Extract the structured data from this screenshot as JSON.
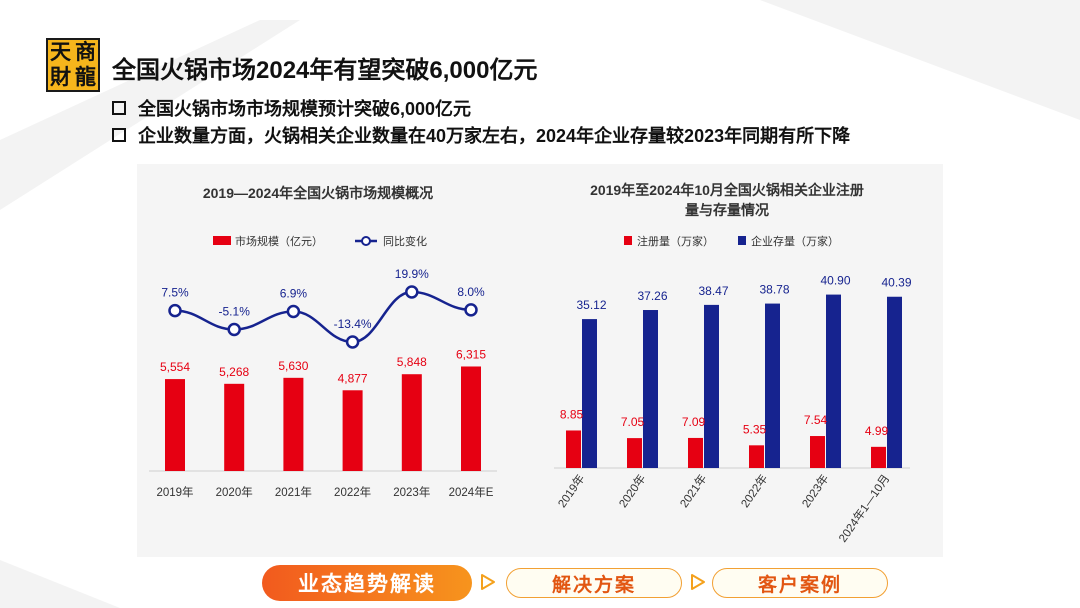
{
  "logo": {
    "chars": [
      "天",
      "商",
      "財",
      "龍"
    ]
  },
  "header": {
    "title": "全国火锅市场2024年有望突破6,000亿元"
  },
  "bullets": [
    "全国火锅市场市场规模预计突破6,000亿元",
    "企业数量方面，火锅相关企业数量在40万家左右，2024年企业存量较2023年同期有所下降"
  ],
  "colors": {
    "red": "#e60012",
    "navy": "#16238f",
    "orange": "#f47a20"
  },
  "chart_data": [
    {
      "type": "bar",
      "title": "2019—2024年全国火锅市场规模概况",
      "categories": [
        "2019年",
        "2020年",
        "2021年",
        "2022年",
        "2023年",
        "2024年E"
      ],
      "series": [
        {
          "name": "市场规模（亿元）",
          "type": "bar",
          "values": [
            5554,
            5268,
            5630,
            4877,
            5848,
            6315
          ],
          "labels": [
            "5,554",
            "5,268",
            "5,630",
            "4,877",
            "5,848",
            "6,315"
          ]
        },
        {
          "name": "同比变化",
          "type": "line",
          "values": [
            7.5,
            -5.1,
            6.9,
            -13.4,
            19.9,
            8.0
          ],
          "labels": [
            "7.5%",
            "-5.1%",
            "6.9%",
            "-13.4%",
            "19.9%",
            "8.0%"
          ]
        }
      ],
      "legend": "top-center"
    },
    {
      "type": "bar",
      "title": "2019年至2024年10月全国火锅相关企业注册量与存量情况",
      "title_lines": [
        "2019年至2024年10月全国火锅相关企业注册",
        "量与存量情况"
      ],
      "categories": [
        "2019年",
        "2020年",
        "2021年",
        "2022年",
        "2023年",
        "2024年1—10月"
      ],
      "series": [
        {
          "name": "注册量（万家）",
          "values": [
            8.85,
            7.05,
            7.09,
            5.35,
            7.54,
            4.99
          ],
          "labels": [
            "8.85",
            "7.05",
            "7.09",
            "5.35",
            "7.54",
            "4.99"
          ]
        },
        {
          "name": "企业存量（万家）",
          "values": [
            35.12,
            37.26,
            38.47,
            38.78,
            40.9,
            40.39
          ],
          "labels": [
            "35.12",
            "37.26",
            "38.47",
            "38.78",
            "40.90",
            "40.39"
          ]
        }
      ],
      "legend": "top-center"
    }
  ],
  "tabs": [
    {
      "label": "业态趋势解读",
      "active": true
    },
    {
      "label": "解决方案",
      "active": false
    },
    {
      "label": "客户案例",
      "active": false
    }
  ]
}
